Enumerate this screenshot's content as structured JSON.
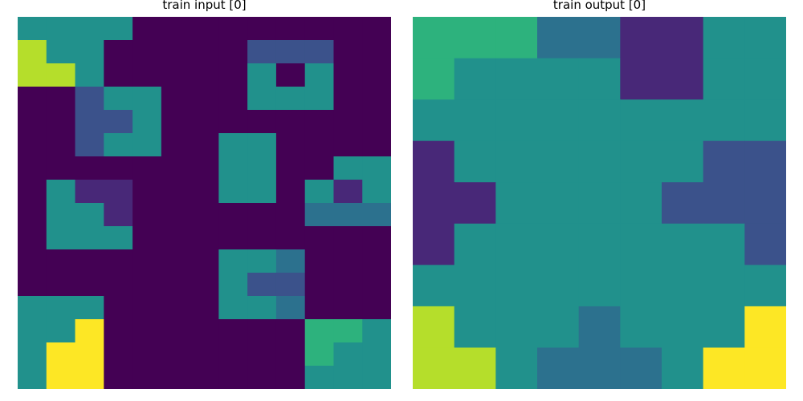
{
  "panels": [
    {
      "title": "train input [0]",
      "rows": [
        "1111000000000",
        "5110000022200",
        "5510000010100",
        "0021100011100",
        "0022100000000",
        "0021100110000",
        "0000000110011",
        "0133000110131",
        "0113000000444",
        "0111000000000",
        "0000000114000",
        "0000000122000",
        "1110000114000",
        "1170000000661",
        "1770000000611",
        "1770000000111"
      ]
    },
    {
      "title": "train output [0]",
      "rows": [
        "666443311",
        "611113311",
        "111111111",
        "311111122",
        "331111222",
        "311111112",
        "111111111",
        "511141117",
        "551444177"
      ]
    }
  ],
  "palette": {
    "0": "#440154",
    "1": "#21918c",
    "2": "#3b528b",
    "3": "#482878",
    "4": "#2c718e",
    "5": "#b5de2b",
    "6": "#2db27d",
    "7": "#fde725"
  }
}
